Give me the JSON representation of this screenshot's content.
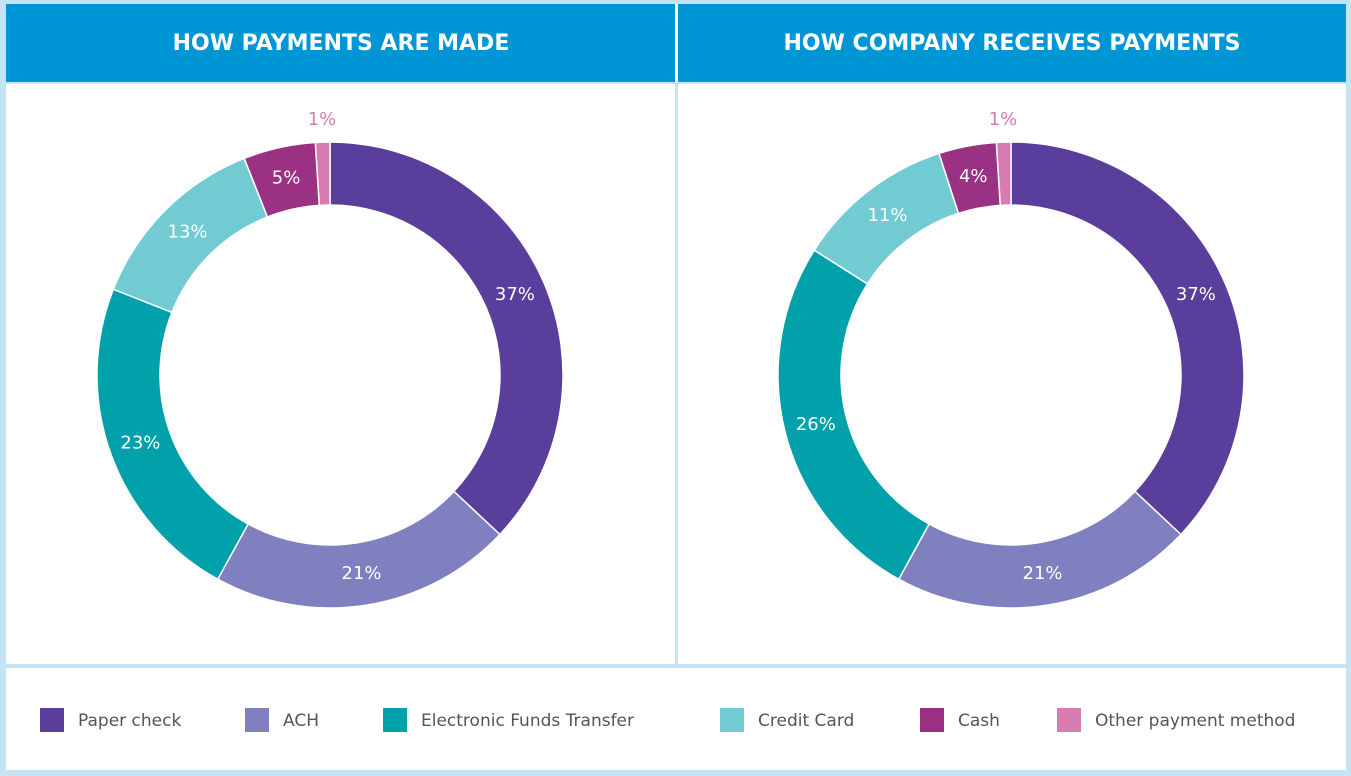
{
  "legend": {
    "items": [
      {
        "name": "Paper check",
        "color": "#5a3e9b"
      },
      {
        "name": "ACH",
        "color": "#8080c0"
      },
      {
        "name": "Electronic Funds Transfer",
        "color": "#00a1aa"
      },
      {
        "name": "Credit Card",
        "color": "#72cbd3"
      },
      {
        "name": "Cash",
        "color": "#9b3182"
      },
      {
        "name": "Other payment method",
        "color": "#d77cb2"
      }
    ]
  },
  "chart_data": [
    {
      "type": "pie",
      "donut": true,
      "title": "HOW PAYMENTS ARE MADE",
      "values": [
        37,
        21,
        23,
        13,
        5,
        1
      ],
      "value_labels": [
        "37%",
        "21%",
        "23%",
        "13%",
        "5%",
        "1%"
      ]
    },
    {
      "type": "pie",
      "donut": true,
      "title": "HOW COMPANY RECEIVES PAYMENTS",
      "values": [
        37,
        21,
        26,
        11,
        4,
        1
      ],
      "value_labels": [
        "37%",
        "21%",
        "26%",
        "11%",
        "4%",
        "1%"
      ]
    }
  ]
}
